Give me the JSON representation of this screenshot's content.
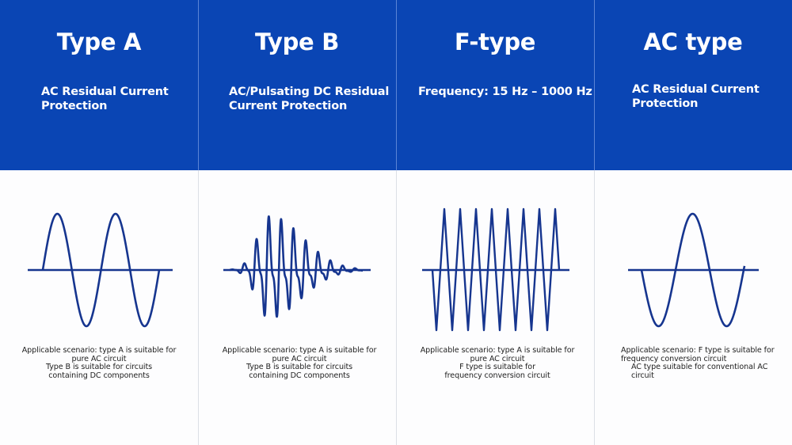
{
  "colors": {
    "header_bg": "#0a45b4",
    "wave": "#16358f",
    "divider": "#dcdfe6"
  },
  "columns": [
    {
      "title": "Type A",
      "subtitle": [
        "AC Residual Current",
        "Protection"
      ],
      "waveform": "sine-wave-icon",
      "description": [
        "Applicable scenario: type A is suitable for",
        "pure AC circuit",
        "Type B is suitable for circuits",
        "containing DC components"
      ]
    },
    {
      "title": "Type B",
      "subtitle": [
        "AC/Pulsating DC Residual",
        "Current Protection"
      ],
      "waveform": "pulsating-burst-wave-icon",
      "description": [
        "Applicable scenario: type A is suitable for",
        "pure AC circuit",
        "Type B is suitable for circuits",
        "containing DC components"
      ]
    },
    {
      "title": "F-type",
      "subtitle": [
        "Frequency: 15 Hz – 1000 Hz"
      ],
      "waveform": "high-frequency-spike-wave-icon",
      "description": [
        "Applicable scenario: type A is suitable for",
        "pure AC circuit",
        "F type is suitable for",
        "frequency conversion circuit"
      ]
    },
    {
      "title": "AC type",
      "subtitle": [
        "AC Residual Current",
        "Protection"
      ],
      "waveform": "inverted-sine-wave-icon",
      "description": [
        "Applicable scenario: F type is suitable for",
        "frequency conversion circuit",
        "AC type suitable for conventional AC",
        "circuit"
      ]
    }
  ]
}
